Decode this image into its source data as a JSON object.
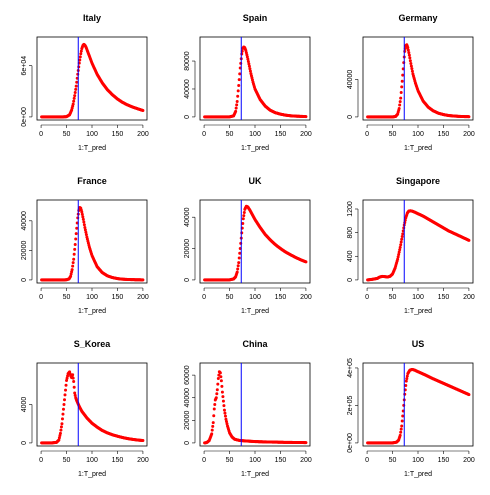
{
  "chart_data": [
    {
      "type": "scatter",
      "title": "Italy",
      "xlabel": "1:T_pred",
      "ylabel": "",
      "xlim": [
        0,
        200
      ],
      "ylim": [
        0,
        90000
      ],
      "yticks": [
        "0e+00",
        "6e+04"
      ],
      "ytick_values": [
        0,
        60000
      ],
      "xticks": [
        "0",
        "50",
        "100",
        "150",
        "200"
      ],
      "xtick_values": [
        0,
        50,
        100,
        150,
        200
      ],
      "vline_x": 73,
      "series": [
        {
          "x": [
            1,
            20,
            40,
            50,
            56,
            60,
            63,
            66,
            69,
            72,
            75,
            78,
            80,
            82,
            84,
            86,
            88,
            90,
            95,
            100,
            110,
            120,
            130,
            140,
            150,
            160,
            170,
            180,
            190,
            200
          ],
          "y": [
            0,
            0,
            0,
            300,
            2500,
            8000,
            15000,
            25000,
            36000,
            50000,
            63000,
            74000,
            80000,
            83500,
            85000,
            84000,
            82000,
            79000,
            71000,
            63000,
            50000,
            40000,
            32000,
            26000,
            21000,
            17000,
            14000,
            11500,
            9500,
            7500
          ]
        }
      ]
    },
    {
      "type": "scatter",
      "title": "Spain",
      "xlabel": "1:T_pred",
      "ylabel": "",
      "xlim": [
        0,
        200
      ],
      "ylim": [
        0,
        110000
      ],
      "yticks": [
        "0",
        "40000",
        "80000"
      ],
      "ytick_values": [
        0,
        40000,
        80000
      ],
      "xticks": [
        "0",
        "50",
        "100",
        "150",
        "200"
      ],
      "xtick_values": [
        0,
        50,
        100,
        150,
        200
      ],
      "vline_x": 73,
      "series": [
        {
          "x": [
            1,
            20,
            40,
            50,
            58,
            62,
            65,
            68,
            71,
            74,
            76,
            78,
            80,
            82,
            85,
            88,
            92,
            96,
            100,
            110,
            120,
            130,
            140,
            150,
            160,
            170,
            180,
            190,
            200
          ],
          "y": [
            0,
            0,
            0,
            0,
            1500,
            8000,
            22000,
            45000,
            70000,
            90000,
            98000,
            100000,
            99000,
            95000,
            86000,
            76000,
            62000,
            50000,
            40000,
            25000,
            15500,
            9500,
            6000,
            4000,
            2500,
            1600,
            1100,
            800,
            500
          ]
        }
      ]
    },
    {
      "type": "scatter",
      "title": "Germany",
      "xlabel": "1:T_pred",
      "ylabel": "",
      "xlim": [
        0,
        200
      ],
      "ylim": [
        0,
        82000
      ],
      "yticks": [
        "0",
        "40000"
      ],
      "ytick_values": [
        0,
        40000
      ],
      "xticks": [
        "0",
        "50",
        "100",
        "150",
        "200"
      ],
      "xtick_values": [
        0,
        50,
        100,
        150,
        200
      ],
      "vline_x": 73,
      "series": [
        {
          "x": [
            1,
            20,
            40,
            50,
            56,
            60,
            63,
            66,
            69,
            72,
            74,
            76,
            78,
            80,
            83,
            86,
            90,
            95,
            100,
            110,
            120,
            130,
            140,
            150,
            160,
            170,
            180,
            190,
            200
          ],
          "y": [
            0,
            0,
            0,
            0,
            500,
            3000,
            9000,
            20000,
            38000,
            58000,
            70000,
            76000,
            77000,
            74000,
            66000,
            57000,
            46000,
            36000,
            28000,
            17000,
            10500,
            6500,
            4000,
            2500,
            1500,
            1000,
            600,
            400,
            250
          ]
        }
      ]
    },
    {
      "type": "scatter",
      "title": "France",
      "xlabel": "1:T_pred",
      "ylabel": "",
      "xlim": [
        0,
        200
      ],
      "ylim": [
        0,
        52000
      ],
      "yticks": [
        "0",
        "20000",
        "40000"
      ],
      "ytick_values": [
        0,
        20000,
        40000
      ],
      "xticks": [
        "0",
        "50",
        "100",
        "150",
        "200"
      ],
      "xtick_values": [
        0,
        50,
        100,
        150,
        200
      ],
      "vline_x": 73,
      "series": [
        {
          "x": [
            1,
            20,
            40,
            50,
            55,
            58,
            61,
            64,
            67,
            70,
            72,
            74,
            76,
            78,
            80,
            83,
            86,
            90,
            95,
            100,
            110,
            120,
            130,
            140,
            150,
            160,
            170,
            180,
            190,
            200
          ],
          "y": [
            0,
            0,
            0,
            100,
            700,
            2500,
            7000,
            14000,
            24000,
            35000,
            42000,
            47000,
            49000,
            48500,
            46000,
            41000,
            35500,
            29000,
            22000,
            16500,
            9000,
            5000,
            2800,
            1600,
            900,
            500,
            300,
            200,
            100,
            60
          ]
        }
      ]
    },
    {
      "type": "scatter",
      "title": "UK",
      "xlabel": "1:T_pred",
      "ylabel": "",
      "xlim": [
        0,
        200
      ],
      "ylim": [
        0,
        49000
      ],
      "yticks": [
        "0",
        "20000",
        "40000"
      ],
      "ytick_values": [
        0,
        20000,
        40000
      ],
      "xticks": [
        "0",
        "50",
        "100",
        "150",
        "200"
      ],
      "xtick_values": [
        0,
        50,
        100,
        150,
        200
      ],
      "vline_x": 73,
      "series": [
        {
          "x": [
            1,
            20,
            40,
            50,
            58,
            62,
            65,
            68,
            71,
            74,
            77,
            80,
            83,
            86,
            90,
            95,
            100,
            110,
            120,
            130,
            140,
            150,
            160,
            170,
            180,
            190,
            200
          ],
          "y": [
            0,
            0,
            0,
            50,
            600,
            2000,
            5000,
            11000,
            20000,
            30000,
            39000,
            45000,
            47000,
            46500,
            44500,
            41500,
            38500,
            33500,
            29000,
            25500,
            22500,
            20000,
            17800,
            16000,
            14300,
            12800,
            11500
          ]
        }
      ]
    },
    {
      "type": "scatter",
      "title": "Singapore",
      "xlabel": "1:T_pred",
      "ylabel": "",
      "xlim": [
        0,
        200
      ],
      "ylim": [
        0,
        1300
      ],
      "yticks": [
        "0",
        "400",
        "800",
        "1200"
      ],
      "ytick_values": [
        0,
        400,
        800,
        1200
      ],
      "xticks": [
        "0",
        "50",
        "100",
        "150",
        "200"
      ],
      "xtick_values": [
        0,
        50,
        100,
        150,
        200
      ],
      "vline_x": 73,
      "series": [
        {
          "x": [
            1,
            10,
            20,
            25,
            30,
            35,
            40,
            45,
            50,
            55,
            60,
            65,
            70,
            73,
            76,
            79,
            82,
            85,
            90,
            95,
            100,
            110,
            120,
            130,
            140,
            150,
            160,
            170,
            180,
            190,
            200
          ],
          "y": [
            0,
            10,
            25,
            50,
            60,
            55,
            50,
            60,
            100,
            200,
            350,
            550,
            780,
            930,
            1050,
            1130,
            1165,
            1170,
            1160,
            1140,
            1120,
            1080,
            1030,
            980,
            930,
            880,
            830,
            790,
            750,
            710,
            670
          ]
        }
      ]
    },
    {
      "type": "scatter",
      "title": "S_Korea",
      "xlabel": "1:T_pred",
      "ylabel": "",
      "xlim": [
        0,
        200
      ],
      "ylim": [
        0,
        8000
      ],
      "yticks": [
        "0",
        "4000"
      ],
      "ytick_values": [
        0,
        4000
      ],
      "xticks": [
        "0",
        "50",
        "100",
        "150",
        "200"
      ],
      "xtick_values": [
        0,
        50,
        100,
        150,
        200
      ],
      "vline_x": 73,
      "series": [
        {
          "x": [
            1,
            20,
            30,
            35,
            38,
            41,
            44,
            47,
            50,
            53,
            56,
            58,
            60,
            62,
            64,
            66,
            68,
            70,
            75,
            80,
            90,
            100,
            110,
            120,
            130,
            140,
            150,
            160,
            170,
            180,
            190,
            200
          ],
          "y": [
            0,
            0,
            50,
            300,
            1000,
            2000,
            3500,
            5000,
            6500,
            7200,
            7400,
            7000,
            6800,
            7100,
            6400,
            5200,
            4700,
            4400,
            3800,
            3300,
            2600,
            2050,
            1650,
            1300,
            1050,
            850,
            700,
            560,
            450,
            370,
            300,
            250
          ]
        }
      ]
    },
    {
      "type": "scatter",
      "title": "China",
      "xlabel": "1:T_pred",
      "ylabel": "",
      "xlim": [
        0,
        200
      ],
      "ylim": [
        0,
        68000
      ],
      "yticks": [
        "0",
        "20000",
        "40000",
        "60000"
      ],
      "ytick_values": [
        0,
        20000,
        40000,
        60000
      ],
      "xticks": [
        "0",
        "50",
        "100",
        "150",
        "200"
      ],
      "xtick_values": [
        0,
        50,
        100,
        150,
        200
      ],
      "vline_x": 73,
      "series": [
        {
          "x": [
            1,
            5,
            10,
            15,
            18,
            20,
            22,
            24,
            26,
            28,
            30,
            32,
            34,
            36,
            38,
            40,
            43,
            46,
            50,
            55,
            60,
            70,
            80,
            90,
            100,
            120,
            140,
            160,
            180,
            200
          ],
          "y": [
            0,
            300,
            2000,
            8000,
            18000,
            30000,
            38000,
            40000,
            47000,
            57000,
            63000,
            62000,
            55000,
            45000,
            37000,
            29000,
            21000,
            15000,
            9000,
            5200,
            3300,
            2200,
            1800,
            1500,
            1200,
            900,
            700,
            500,
            400,
            300
          ]
        }
      ]
    },
    {
      "type": "scatter",
      "title": "US",
      "xlabel": "1:T_pred",
      "ylabel": "",
      "xlim": [
        0,
        200
      ],
      "ylim": [
        0,
        410000
      ],
      "yticks": [
        "0e+00",
        "2e+05",
        "4e+05"
      ],
      "ytick_values": [
        0,
        200000,
        400000
      ],
      "xticks": [
        "0",
        "50",
        "100",
        "150",
        "200"
      ],
      "xtick_values": [
        0,
        50,
        100,
        150,
        200
      ],
      "vline_x": 73,
      "series": [
        {
          "x": [
            1,
            20,
            40,
            50,
            58,
            62,
            65,
            68,
            71,
            74,
            77,
            80,
            84,
            88,
            92,
            96,
            100,
            110,
            120,
            130,
            140,
            150,
            160,
            170,
            180,
            190,
            200
          ],
          "y": [
            0,
            0,
            0,
            200,
            4000,
            15000,
            40000,
            90000,
            170000,
            260000,
            330000,
            370000,
            388000,
            392000,
            390000,
            385000,
            380000,
            368000,
            355000,
            342000,
            330000,
            318000,
            306000,
            294000,
            282000,
            270000,
            258000
          ]
        }
      ]
    }
  ]
}
